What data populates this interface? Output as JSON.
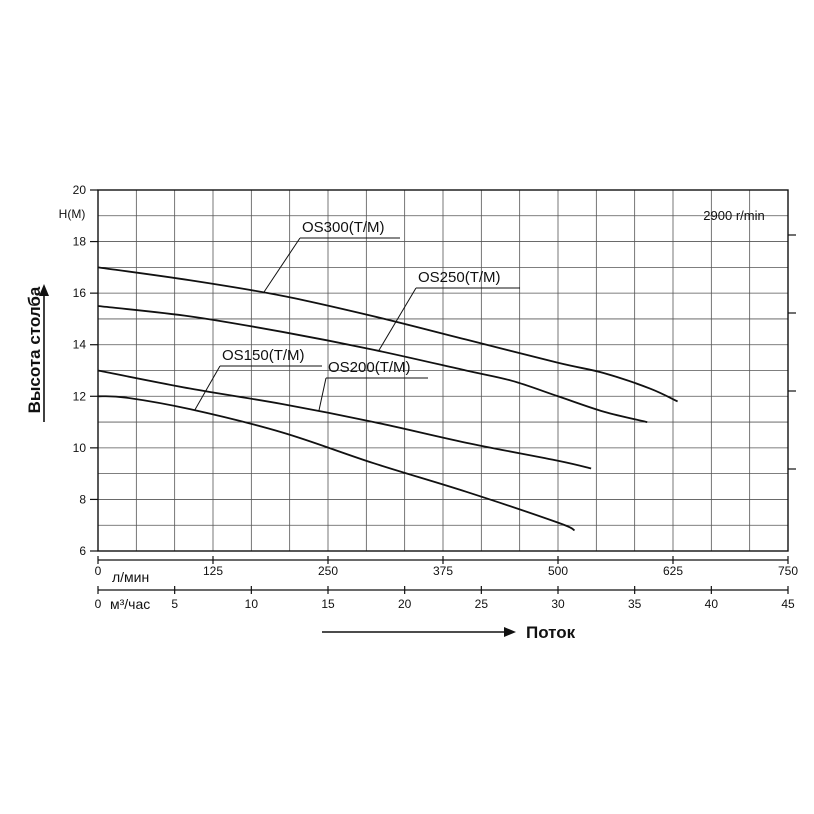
{
  "chart_data": {
    "type": "line",
    "speed_label": "2900 r/min",
    "y_unit": "H(M)",
    "ylabel": "Высота столба",
    "xlabel": "Поток",
    "x_unit_primary": "л/мин",
    "x_unit_secondary": "м³/час",
    "ylim": [
      6,
      20
    ],
    "y_ticks": [
      6,
      8,
      10,
      12,
      14,
      16,
      18,
      20
    ],
    "xlim_lpm": [
      0,
      750
    ],
    "x_ticks_lpm": [
      0,
      125,
      250,
      375,
      500,
      625,
      750
    ],
    "xlim_m3h": [
      0,
      45
    ],
    "x_ticks_m3h": [
      0,
      5,
      10,
      15,
      20,
      25,
      30,
      35,
      40,
      45
    ],
    "grid": true,
    "series": [
      {
        "name": "OS300(T/M)",
        "x_lpm": [
          0,
          100,
          200,
          300,
          400,
          500,
          550,
          600,
          630
        ],
        "y": [
          17.0,
          16.5,
          15.9,
          15.1,
          14.2,
          13.3,
          12.9,
          12.3,
          11.8
        ]
      },
      {
        "name": "OS250(T/M)",
        "x_lpm": [
          0,
          100,
          200,
          300,
          400,
          450,
          500,
          550,
          597
        ],
        "y": [
          15.5,
          15.1,
          14.5,
          13.8,
          13.0,
          12.6,
          12.0,
          11.4,
          11.0
        ]
      },
      {
        "name": "OS200(T/M)",
        "x_lpm": [
          0,
          100,
          200,
          300,
          400,
          500,
          536
        ],
        "y": [
          13.0,
          12.3,
          11.7,
          11.0,
          10.2,
          9.5,
          9.2
        ]
      },
      {
        "name": "OS150(T/M)",
        "x_lpm": [
          0,
          30,
          100,
          200,
          300,
          400,
          500,
          518
        ],
        "y": [
          12.0,
          11.95,
          11.5,
          10.6,
          9.4,
          8.3,
          7.1,
          6.8
        ]
      }
    ]
  }
}
